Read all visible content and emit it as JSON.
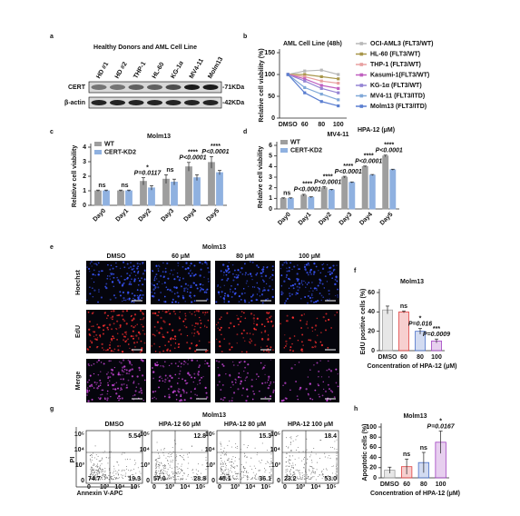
{
  "figure": {
    "blot": {
      "label": "a",
      "title": "Healthy Donors and AML Cell Line",
      "lanes": [
        "HD #1",
        "HD #2",
        "THP-1",
        "HL-60",
        "KG-1α",
        "MV4-11",
        "Molm13"
      ],
      "rows": [
        "CERT",
        "β-actin"
      ],
      "markers": [
        "-71KDa",
        "-42KDa"
      ]
    },
    "microscopy": {
      "label": "e",
      "title": "Molm13",
      "columns": [
        "DMSO",
        "60 μM",
        "80 μM",
        "100 μM"
      ],
      "rows": [
        "Hoechst",
        "EdU",
        "Merge"
      ]
    },
    "flow": {
      "label": "g",
      "title": "Molm13",
      "x_label": "Annexin V-APC",
      "y_label": "PI",
      "ticks": [
        "0",
        "10³",
        "10⁴",
        "10⁵"
      ],
      "plots": [
        {
          "title": "DMSO",
          "upper_right": "5.54",
          "lower_left": "74.7",
          "lower_right": "19.3"
        },
        {
          "title": "HPA-12 60 μM",
          "upper_right": "12.8",
          "lower_left": "57.0",
          "lower_right": "28.8"
        },
        {
          "title": "HPA-12 80 μM",
          "upper_right": "15.3",
          "lower_left": "45.1",
          "lower_right": "36.1"
        },
        {
          "title": "HPA-12 100 μM",
          "upper_right": "18.4",
          "lower_left": "23.2",
          "lower_right": "53.0"
        }
      ]
    }
  },
  "chart_data": [
    {
      "type": "line",
      "label": "b",
      "title": "AML Cell Line (48h)",
      "ylabel": "Relative cell viability (%)",
      "xlabel": "HPA-12 (μM)",
      "categories": [
        "DMSO",
        "60",
        "80",
        "100"
      ],
      "ylim": [
        0,
        150
      ],
      "yticks": [
        0,
        50,
        100,
        150
      ],
      "series": [
        {
          "name": "OCI-AML3 (FLT3/WT)",
          "color": "#b8b8b8",
          "values": [
            100,
            108,
            110,
            100
          ]
        },
        {
          "name": "HL-60 (FLT3/WT)",
          "color": "#a8964a",
          "values": [
            100,
            100,
            95,
            90
          ]
        },
        {
          "name": "THP-1 (FLT3/WT)",
          "color": "#e8a0a0",
          "values": [
            100,
            95,
            85,
            80
          ]
        },
        {
          "name": "Kasumi-1(FLT3/WT)",
          "color": "#c060c0",
          "values": [
            100,
            90,
            75,
            68
          ]
        },
        {
          "name": "KG-1α (FLT3/WT)",
          "color": "#9484d4",
          "values": [
            100,
            85,
            68,
            58
          ]
        },
        {
          "name": "MV4-11 (FLT3/ITD)",
          "color": "#80a8d8",
          "values": [
            100,
            70,
            55,
            42
          ]
        },
        {
          "name": "Molm13 (FLT3/ITD)",
          "color": "#5a7ed0",
          "values": [
            100,
            58,
            38,
            28
          ]
        }
      ]
    },
    {
      "type": "bar",
      "label": "c",
      "title": "Molm13",
      "ylabel": "Relative cell viability",
      "categories": [
        "Day0",
        "Day1",
        "Day2",
        "Day3",
        "Day4",
        "Day5"
      ],
      "ylim": [
        0,
        4
      ],
      "yticks": [
        0,
        1,
        2,
        3,
        4
      ],
      "series": [
        {
          "name": "WT",
          "color": "#9e9e9e",
          "values": [
            1,
            1,
            1.65,
            1.8,
            2.65,
            2.95
          ],
          "errors": [
            0.05,
            0.05,
            0.25,
            0.3,
            0.3,
            0.4
          ]
        },
        {
          "name": "CERT-KD2",
          "color": "#8fb1e0",
          "values": [
            1,
            1,
            1.2,
            1.6,
            1.9,
            2.25
          ],
          "errors": [
            0.05,
            0.05,
            0.15,
            0.2,
            0.2,
            0.15
          ]
        }
      ],
      "significance": [
        "ns",
        "ns",
        "*",
        "ns",
        "****",
        "****"
      ],
      "p_values": [
        null,
        null,
        "P=0.0117",
        null,
        "P<0.0001",
        "P<0.0001"
      ]
    },
    {
      "type": "bar",
      "label": "d",
      "title": "MV4-11",
      "ylabel": "Relative cell viability",
      "categories": [
        "Day0",
        "Day1",
        "Day2",
        "Day3",
        "Day4",
        "Day5"
      ],
      "ylim": [
        0,
        6
      ],
      "yticks": [
        0,
        1,
        2,
        3,
        4,
        5,
        6
      ],
      "series": [
        {
          "name": "WT",
          "color": "#9e9e9e",
          "values": [
            1,
            1.3,
            2.0,
            3.0,
            4.0,
            5.0
          ],
          "errors": [
            0.05,
            0.08,
            0.1,
            0.08,
            0.05,
            0.08
          ]
        },
        {
          "name": "CERT-KD2",
          "color": "#8fb1e0",
          "values": [
            1,
            1.1,
            1.8,
            2.5,
            3.2,
            3.7
          ],
          "errors": [
            0.05,
            0.05,
            0.05,
            0.05,
            0.05,
            0.05
          ]
        }
      ],
      "significance": [
        "ns",
        "****",
        "****",
        "****",
        "****",
        "****"
      ],
      "p_values": [
        null,
        "P<0.0001",
        "P<0.0001",
        "P<0.0001",
        "P<0.0001",
        "P<0.0001"
      ]
    },
    {
      "type": "bar",
      "label": "f",
      "title": "Molm13",
      "ylabel": "EdU positive cells (%)",
      "xlabel": "Concentration of HPA-12 (μM)",
      "categories": [
        "DMSO",
        "60",
        "80",
        "100"
      ],
      "ylim": [
        0,
        60
      ],
      "yticks": [
        0,
        20,
        40,
        60
      ],
      "values": [
        42,
        40,
        20,
        10
      ],
      "errors": [
        4,
        1,
        3,
        2
      ],
      "colors": [
        "#9e9e9e",
        "#e04040",
        "#4a70c8",
        "#a040c0"
      ],
      "significance": [
        null,
        "ns",
        "*",
        "***"
      ],
      "p_values": [
        null,
        null,
        "P=0.016",
        "P=0.0009"
      ]
    },
    {
      "type": "bar",
      "label": "h",
      "title": "Molm13",
      "ylabel": "Apoptotic cells (%)",
      "xlabel": "Concentration of HPA-12 (μM)",
      "categories": [
        "DMSO",
        "60",
        "80",
        "100"
      ],
      "ylim": [
        0,
        100
      ],
      "yticks": [
        0,
        20,
        40,
        60,
        80,
        100
      ],
      "values": [
        15,
        22,
        30,
        70
      ],
      "errors": [
        6,
        15,
        20,
        22
      ],
      "colors": [
        "#9e9e9e",
        "#e04040",
        "#4a70c8",
        "#a040c0"
      ],
      "significance": [
        null,
        "ns",
        "ns",
        "*"
      ],
      "p_values": [
        null,
        null,
        null,
        "P=0.0167"
      ]
    }
  ]
}
